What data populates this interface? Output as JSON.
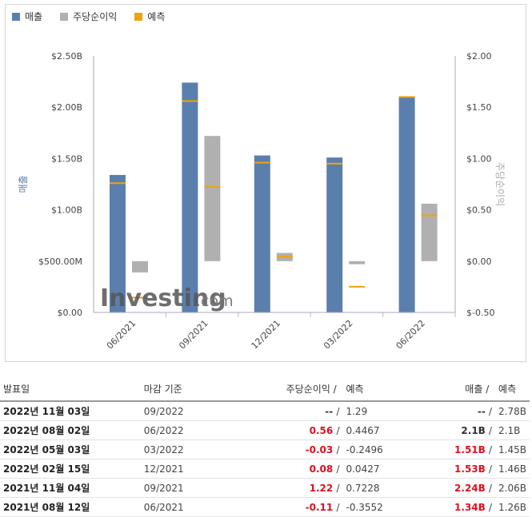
{
  "legend": [
    {
      "label": "매출",
      "color": "#5b7fad"
    },
    {
      "label": "주당순이익",
      "color": "#b0b0b0"
    },
    {
      "label": "예측",
      "color": "#f0a30a"
    }
  ],
  "watermark": {
    "brand": "Investing",
    "suffix": ".com"
  },
  "chart_data": {
    "type": "bar",
    "categories": [
      "06/2021",
      "09/2021",
      "12/2021",
      "03/2022",
      "06/2022"
    ],
    "left_axis": {
      "label": "매출",
      "ticks": [
        "$0.00",
        "$500.00M",
        "$1.00B",
        "$1.50B",
        "$2.00B",
        "$2.50B"
      ],
      "ylim": [
        0,
        2.5
      ]
    },
    "right_axis": {
      "label": "주당순이익",
      "ticks": [
        "$-0.50",
        "$0.00",
        "$0.50",
        "$1.00",
        "$1.50",
        "$2.00"
      ],
      "ylim": [
        -0.5,
        2.0
      ]
    },
    "series": [
      {
        "name": "매출",
        "axis": "left",
        "unit": "B",
        "values": [
          1.34,
          2.24,
          1.53,
          1.51,
          2.1
        ],
        "forecast": [
          1.26,
          2.06,
          1.46,
          1.45,
          2.1
        ]
      },
      {
        "name": "주당순이익",
        "axis": "right",
        "values": [
          -0.11,
          1.22,
          0.08,
          -0.03,
          0.56
        ],
        "forecast": [
          -0.3552,
          0.7228,
          0.0427,
          -0.2496,
          0.4467
        ]
      }
    ],
    "colors": {
      "revenue": "#5b7fad",
      "eps": "#b0b0b0",
      "forecast": "#f0a30a"
    }
  },
  "table": {
    "headers": {
      "date": "발표일",
      "period": "마감 기준",
      "eps": "주당순이익",
      "eps_sep": " / ",
      "eps_forecast": "예측",
      "revenue": "매출",
      "rev_sep": " / ",
      "revenue_forecast": "예측"
    },
    "rows": [
      {
        "date": "2022년 11월 03일",
        "period": "09/2022",
        "eps": "--",
        "eps_forecast": "1.29",
        "revenue": "--",
        "revenue_forecast": "2.78B",
        "eps_color": "neutral",
        "rev_color": "neutral"
      },
      {
        "date": "2022년 08월 02일",
        "period": "06/2022",
        "eps": "0.56",
        "eps_forecast": "0.4467",
        "revenue": "2.1B",
        "revenue_forecast": "2.1B",
        "eps_color": "red",
        "rev_color": "neutral"
      },
      {
        "date": "2022년 05월 03일",
        "period": "03/2022",
        "eps": "-0.03",
        "eps_forecast": "-0.2496",
        "revenue": "1.51B",
        "revenue_forecast": "1.45B",
        "eps_color": "red",
        "rev_color": "red"
      },
      {
        "date": "2022년 02월 15일",
        "period": "12/2021",
        "eps": "0.08",
        "eps_forecast": "0.0427",
        "revenue": "1.53B",
        "revenue_forecast": "1.46B",
        "eps_color": "red",
        "rev_color": "red"
      },
      {
        "date": "2021년 11월 04일",
        "period": "09/2021",
        "eps": "1.22",
        "eps_forecast": "0.7228",
        "revenue": "2.24B",
        "revenue_forecast": "2.06B",
        "eps_color": "red",
        "rev_color": "red"
      },
      {
        "date": "2021년 08월 12일",
        "period": "06/2021",
        "eps": "-0.11",
        "eps_forecast": "-0.3552",
        "revenue": "1.34B",
        "revenue_forecast": "1.26B",
        "eps_color": "red",
        "rev_color": "red"
      }
    ]
  }
}
